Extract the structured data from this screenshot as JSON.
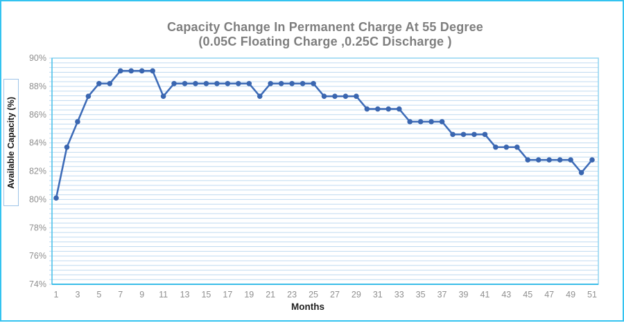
{
  "chart_data": {
    "type": "line",
    "title": "Capacity Change In Permanent Charge At 55 Degree",
    "subtitle": "(0.05C Floating Charge ,0.25C Discharge )",
    "xlabel": "Months",
    "ylabel": "Available Capacity (%)",
    "x": [
      1,
      2,
      3,
      4,
      5,
      6,
      7,
      8,
      9,
      10,
      11,
      12,
      13,
      14,
      15,
      16,
      17,
      18,
      19,
      20,
      21,
      22,
      23,
      24,
      25,
      26,
      27,
      28,
      29,
      30,
      31,
      32,
      33,
      34,
      35,
      36,
      37,
      38,
      39,
      40,
      41,
      42,
      43,
      44,
      45,
      46,
      47,
      48,
      49,
      50,
      51
    ],
    "values": [
      80.1,
      83.7,
      85.5,
      87.3,
      88.2,
      88.2,
      89.1,
      89.1,
      89.1,
      89.1,
      87.3,
      88.2,
      88.2,
      88.2,
      88.2,
      88.2,
      88.2,
      88.2,
      88.2,
      87.3,
      88.2,
      88.2,
      88.2,
      88.2,
      88.2,
      87.3,
      87.3,
      87.3,
      87.3,
      86.4,
      86.4,
      86.4,
      86.4,
      85.5,
      85.5,
      85.5,
      85.5,
      84.6,
      84.6,
      84.6,
      84.6,
      83.7,
      83.7,
      83.7,
      82.8,
      82.8,
      82.8,
      82.8,
      82.8,
      81.9,
      82.8
    ],
    "ylim": [
      74,
      90
    ],
    "y_major_unit": 2,
    "y_minor_divisions_per_major": 6,
    "y_tick_labels": [
      "90%",
      "88%",
      "86%",
      "84%",
      "82%",
      "80%",
      "78%",
      "76%",
      "74%"
    ],
    "x_tick_labels": [
      "1",
      "3",
      "5",
      "7",
      "9",
      "11",
      "13",
      "15",
      "17",
      "19",
      "21",
      "23",
      "25",
      "27",
      "29",
      "31",
      "33",
      "35",
      "37",
      "39",
      "41",
      "43",
      "45",
      "47",
      "49",
      "51"
    ],
    "grid": "horizontal-minor-on",
    "legend": "none"
  },
  "colors": {
    "series_line": "#3E6CB8",
    "marker_fill": "#3A66B0",
    "gridline": "#BFDAF0",
    "plot_border": "#8FD4F0",
    "axis_line": "#38BCE8",
    "outer_border": "#33C3F0",
    "ylabel_box_border": "#9CC3E8",
    "tick_text": "#8F8F8F",
    "title_text": "#7E7E7E",
    "axis_title_text": "#1F1F1F"
  }
}
